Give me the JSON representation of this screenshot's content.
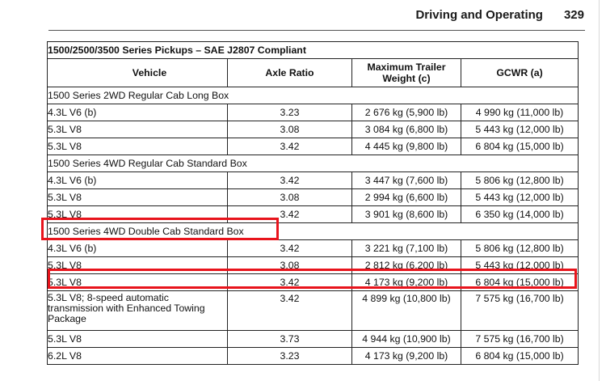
{
  "header": {
    "section_title": "Driving and Operating",
    "page_number": "329"
  },
  "table": {
    "title": "1500/2500/3500 Series Pickups – SAE J2807 Compliant",
    "columns": [
      "Vehicle",
      "Axle Ratio",
      "Maximum Trailer\nWeight (c)",
      "GCWR (a)"
    ],
    "groups": [
      {
        "name": "1500 Series 2WD Regular Cab Long Box",
        "rows": [
          {
            "vehicle": "4.3L V6 (b)",
            "axle": "3.23",
            "weight": "2 676 kg (5,900 lb)",
            "gcwr": "4 990 kg (11,000 lb)"
          },
          {
            "vehicle": "5.3L V8",
            "axle": "3.08",
            "weight": "3 084 kg (6,800 lb)",
            "gcwr": "5 443 kg (12,000 lb)"
          },
          {
            "vehicle": "5.3L V8",
            "axle": "3.42",
            "weight": "4 445 kg (9,800 lb)",
            "gcwr": "6 804 kg (15,000 lb)"
          }
        ]
      },
      {
        "name": "1500 Series 4WD Regular Cab Standard Box",
        "rows": [
          {
            "vehicle": "4.3L V6 (b)",
            "axle": "3.42",
            "weight": "3 447 kg (7,600 lb)",
            "gcwr": "5 806 kg (12,800 lb)"
          },
          {
            "vehicle": "5.3L V8",
            "axle": "3.08",
            "weight": "2 994 kg (6,600 lb)",
            "gcwr": "5 443 kg (12,000 lb)"
          },
          {
            "vehicle": "5.3L V8",
            "axle": "3.42",
            "weight": "3 901 kg (8,600 lb)",
            "gcwr": "6 350 kg (14,000 lb)"
          }
        ]
      },
      {
        "name": "1500 Series 4WD Double Cab Standard Box",
        "rows": [
          {
            "vehicle": "4.3L V6 (b)",
            "axle": "3.42",
            "weight": "3 221 kg (7,100 lb)",
            "gcwr": "5 806 kg (12,800 lb)"
          },
          {
            "vehicle": "5.3L V8",
            "axle": "3.08",
            "weight": "2 812 kg (6,200 lb)",
            "gcwr": "5 443 kg (12,000 lb)"
          },
          {
            "vehicle": "5.3L V8",
            "axle": "3.42",
            "weight": "4 173 kg (9,200 lb)",
            "gcwr": "6 804 kg (15,000 lb)"
          },
          {
            "vehicle": "5.3L V8; 8-speed automatic transmission with Enhanced Towing Package",
            "axle": "3.42",
            "weight": "4 899 kg (10,800 lb)",
            "gcwr": "7 575 kg (16,700 lb)"
          },
          {
            "vehicle": "5.3L V8",
            "axle": "3.73",
            "weight": "4 944 kg (10,900 lb)",
            "gcwr": "7 575 kg (16,700 lb)"
          },
          {
            "vehicle": "6.2L V8",
            "axle": "3.23",
            "weight": "4 173 kg (9,200 lb)",
            "gcwr": "6 804 kg (15,000 lb)"
          }
        ]
      }
    ]
  },
  "annotations": {
    "highlight_color": "#e8141c"
  },
  "colors": {
    "text": "#111111",
    "rule": "#222222",
    "background": "#ffffff"
  }
}
